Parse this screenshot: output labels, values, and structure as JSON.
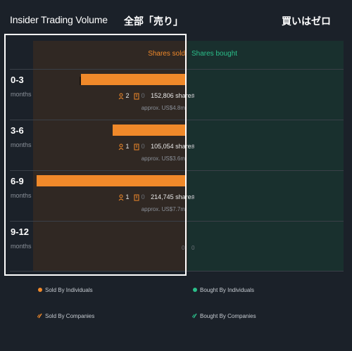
{
  "header": {
    "title": "Insider Trading Volume",
    "annotation_sell": "全部「売り」",
    "annotation_buy": "買いはゼロ"
  },
  "columns": {
    "sold": "Shares sold",
    "bought": "Shares bought"
  },
  "colors": {
    "sold": "#f0892a",
    "bought": "#2bbf8a",
    "background": "#1b2129"
  },
  "rows": [
    {
      "period": "0-3",
      "unit": "months",
      "sold_fraction": 0.7,
      "individuals": "2",
      "companies": "0",
      "shares": "152,806 shares",
      "approx": "approx. US$4.8m",
      "bought": "0"
    },
    {
      "period": "3-6",
      "unit": "months",
      "sold_fraction": 0.49,
      "individuals": "1",
      "companies": "0",
      "shares": "105,054 shares",
      "approx": "approx. US$3.6m",
      "bought": "0"
    },
    {
      "period": "6-9",
      "unit": "months",
      "sold_fraction": 1.0,
      "individuals": "1",
      "companies": "0",
      "shares": "214,745 shares",
      "approx": "approx. US$7.7m",
      "bought": "0"
    },
    {
      "period": "9-12",
      "unit": "months",
      "sold_value": "0",
      "bought": "0"
    }
  ],
  "legend": {
    "sold_individuals": "Sold By Individuals",
    "sold_companies": "Sold By Companies",
    "bought_individuals": "Bought By Individuals",
    "bought_companies": "Bought By Companies"
  },
  "icons": {
    "individual": "person-icon",
    "company": "building-icon",
    "companies_legend": "slash-icon"
  }
}
